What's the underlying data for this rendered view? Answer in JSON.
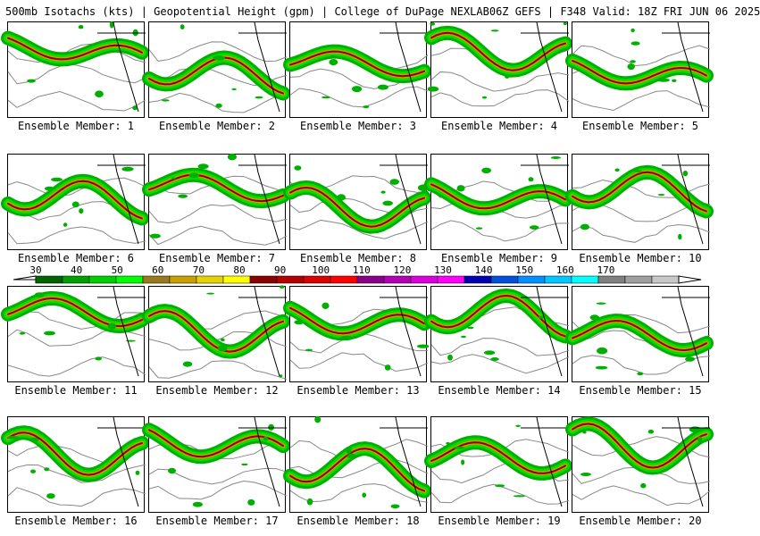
{
  "header": {
    "left": "500mb Isotachs (kts) | Geopotential Height (gpm) | College of DuPage NEXLAB",
    "right": "06Z GEFS | F348 Valid: 18Z FRI JUN 06 2025"
  },
  "panels": [
    {
      "caption": "Ensemble Member: 1"
    },
    {
      "caption": "Ensemble Member: 2"
    },
    {
      "caption": "Ensemble Member: 3"
    },
    {
      "caption": "Ensemble Member: 4"
    },
    {
      "caption": "Ensemble Member: 5"
    },
    {
      "caption": "Ensemble Member: 6"
    },
    {
      "caption": "Ensemble Member: 7"
    },
    {
      "caption": "Ensemble Member: 8"
    },
    {
      "caption": "Ensemble Member: 9"
    },
    {
      "caption": "Ensemble Member: 10"
    },
    {
      "caption": "Ensemble Member: 11"
    },
    {
      "caption": "Ensemble Member: 12"
    },
    {
      "caption": "Ensemble Member: 13"
    },
    {
      "caption": "Ensemble Member: 14"
    },
    {
      "caption": "Ensemble Member: 15"
    },
    {
      "caption": "Ensemble Member: 16"
    },
    {
      "caption": "Ensemble Member: 17"
    },
    {
      "caption": "Ensemble Member: 18"
    },
    {
      "caption": "Ensemble Member: 19"
    },
    {
      "caption": "Ensemble Member: 20"
    }
  ],
  "colorbar": {
    "labels": [
      "30",
      "40",
      "50",
      "60",
      "70",
      "80",
      "90",
      "100",
      "110",
      "120",
      "130",
      "140",
      "150",
      "160",
      "170"
    ],
    "colors": [
      "#006400",
      "#00a000",
      "#00d000",
      "#00ff00",
      "#9b7a1e",
      "#c8a000",
      "#e6d200",
      "#ffff00",
      "#8b0000",
      "#b40000",
      "#dc0000",
      "#ff0000",
      "#8b008b",
      "#b400b4",
      "#dc00dc",
      "#ff00ff",
      "#0000b4",
      "#0050dc",
      "#0090ff",
      "#00c8ff",
      "#00ffff",
      "#808080",
      "#a0a0a0",
      "#c8c8c8"
    ]
  }
}
